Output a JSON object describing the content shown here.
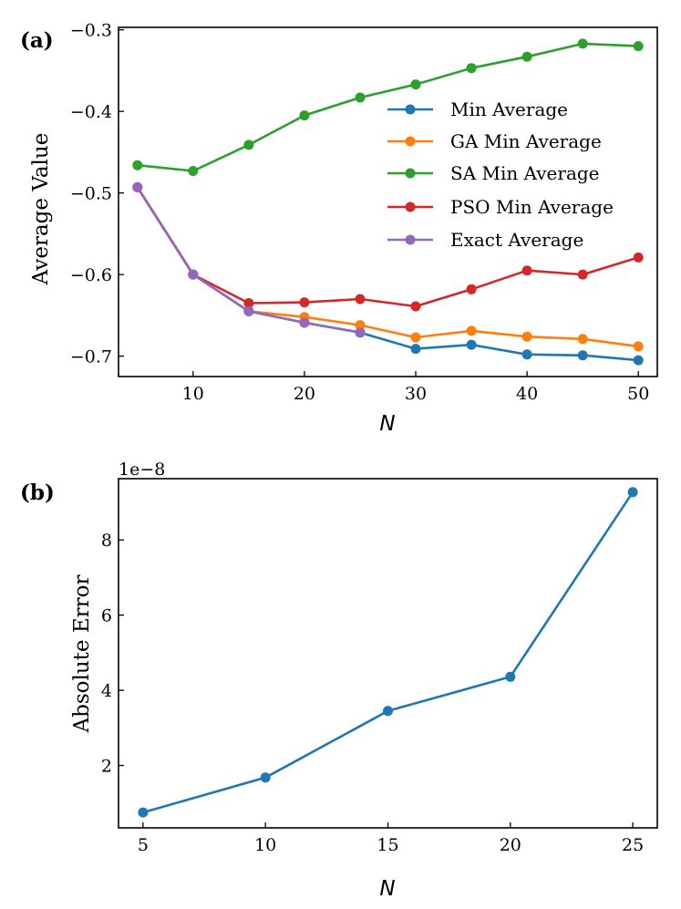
{
  "chart_data": [
    {
      "panel_label": "(a)",
      "type": "line",
      "xlabel": "N",
      "ylabel": "Average Value",
      "xlim": [
        3.3,
        51.7
      ],
      "ylim": [
        -0.725,
        -0.297
      ],
      "xticks": [
        10,
        20,
        30,
        40,
        50
      ],
      "yticks": [
        -0.7,
        -0.6,
        -0.5,
        -0.4,
        -0.3
      ],
      "xtick_labels": [
        "10",
        "20",
        "30",
        "40",
        "50"
      ],
      "ytick_labels": [
        "−0.7",
        "−0.6",
        "−0.5",
        "−0.4",
        "−0.3"
      ],
      "legend_position": "center-right",
      "series": [
        {
          "name": "Min Average",
          "color": "#1f77b4",
          "x": [
            5,
            10,
            15,
            20,
            25,
            30,
            35,
            40,
            45,
            50
          ],
          "y": [
            -0.493,
            -0.6,
            -0.645,
            -0.659,
            -0.671,
            -0.691,
            -0.686,
            -0.698,
            -0.699,
            -0.705
          ]
        },
        {
          "name": "GA Min Average",
          "color": "#ff7f0e",
          "x": [
            5,
            10,
            15,
            20,
            25,
            30,
            35,
            40,
            45,
            50
          ],
          "y": [
            -0.493,
            -0.6,
            -0.645,
            -0.652,
            -0.662,
            -0.677,
            -0.669,
            -0.676,
            -0.679,
            -0.688
          ]
        },
        {
          "name": "SA Min Average",
          "color": "#2ca02c",
          "x": [
            5,
            10,
            15,
            20,
            25,
            30,
            35,
            40,
            45,
            50
          ],
          "y": [
            -0.466,
            -0.473,
            -0.441,
            -0.405,
            -0.383,
            -0.367,
            -0.347,
            -0.333,
            -0.317,
            -0.32
          ]
        },
        {
          "name": "PSO Min Average",
          "color": "#d62728",
          "x": [
            5,
            10,
            15,
            20,
            25,
            30,
            35,
            40,
            45,
            50
          ],
          "y": [
            -0.493,
            -0.6,
            -0.635,
            -0.634,
            -0.63,
            -0.639,
            -0.618,
            -0.595,
            -0.6,
            -0.579
          ]
        },
        {
          "name": "Exact Average",
          "color": "#9467bd",
          "x": [
            5,
            10,
            15,
            20,
            25
          ],
          "y": [
            -0.493,
            -0.6,
            -0.645,
            -0.659,
            -0.671
          ]
        }
      ]
    },
    {
      "panel_label": "(b)",
      "type": "line",
      "xlabel": "N",
      "ylabel": "Absolute Error",
      "offset_text": "1e−8",
      "xlim": [
        4.0,
        26.0
      ],
      "ylim": [
        0.34,
        9.63
      ],
      "xticks": [
        5,
        10,
        15,
        20,
        25
      ],
      "yticks": [
        2,
        4,
        6,
        8
      ],
      "xtick_labels": [
        "5",
        "10",
        "15",
        "20",
        "25"
      ],
      "ytick_labels": [
        "2",
        "4",
        "6",
        "8"
      ],
      "series": [
        {
          "name": "Absolute Error",
          "color": "#1f77b4",
          "x": [
            5,
            10,
            15,
            20,
            25
          ],
          "y": [
            0.75,
            1.68,
            3.45,
            4.36,
            9.27
          ]
        }
      ]
    }
  ]
}
